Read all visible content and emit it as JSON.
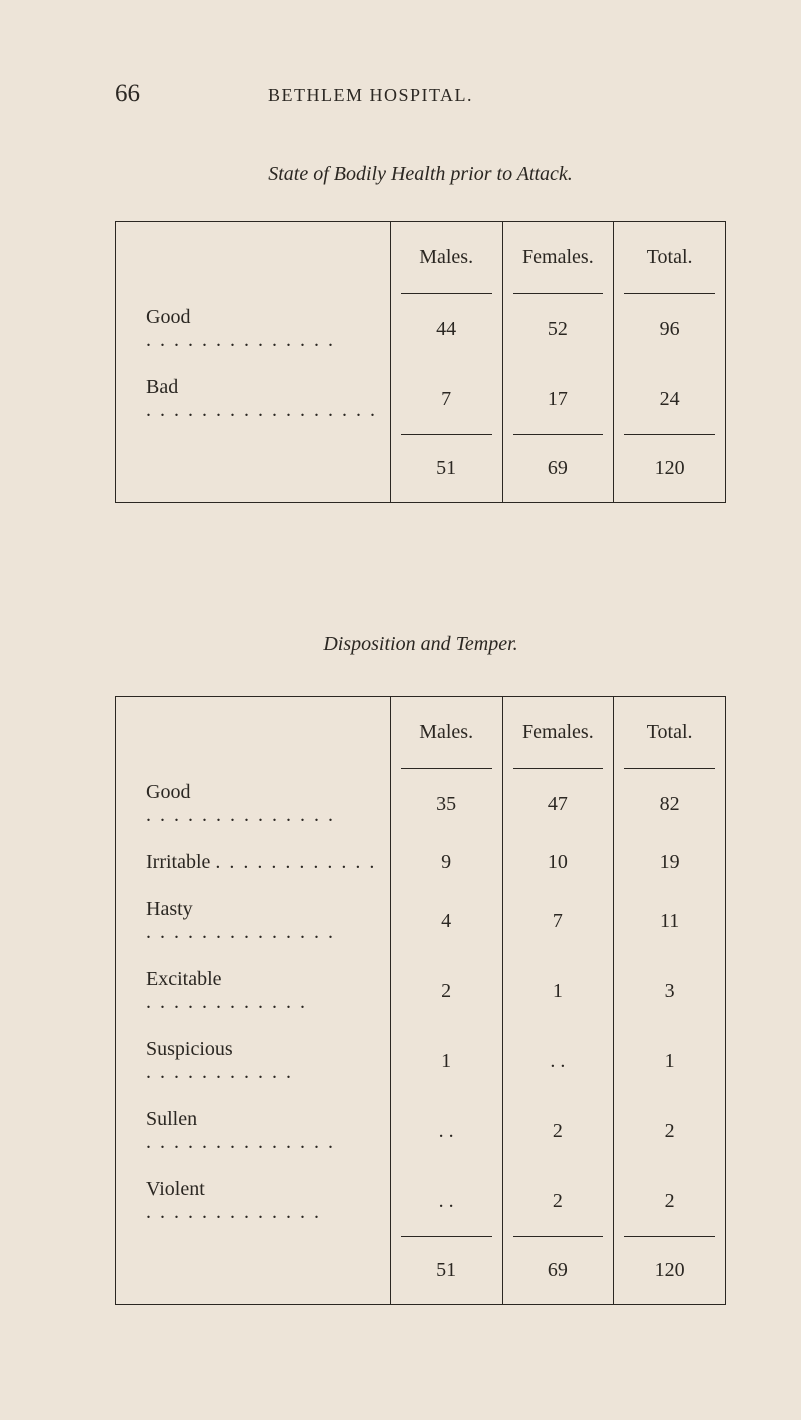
{
  "page_number": "66",
  "running_header": "BETHLEM  HOSPITAL.",
  "table1": {
    "title": "State of Bodily Health prior to Attack.",
    "headers": {
      "males": "Males.",
      "females": "Females.",
      "total": "Total."
    },
    "rows": [
      {
        "label": "Good",
        "dots": ". . . . . . . . . . . . . .",
        "males": "44",
        "females": "52",
        "total": "96"
      },
      {
        "label": "Bad",
        "dots": ". . . . . . . . . . . . . . . . .",
        "males": "7",
        "females": "17",
        "total": "24"
      }
    ],
    "totals": {
      "males": "51",
      "females": "69",
      "total": "120"
    }
  },
  "table2": {
    "title": "Disposition and Temper.",
    "headers": {
      "males": "Males.",
      "females": "Females.",
      "total": "Total."
    },
    "rows": [
      {
        "label": "Good",
        "dots": ". . . . . . . . . . . . . .",
        "males": "35",
        "females": "47",
        "total": "82"
      },
      {
        "label": "Irritable",
        "dots": ". . . . . . . . . . . .",
        "males": "9",
        "females": "10",
        "total": "19"
      },
      {
        "label": "Hasty",
        "dots": ". . . . . . . . . . . . . .",
        "males": "4",
        "females": "7",
        "total": "11"
      },
      {
        "label": "Excitable",
        "dots": ". . . . . . . . . . . .",
        "males": "2",
        "females": "1",
        "total": "3"
      },
      {
        "label": "Suspicious",
        "dots": ". . . . . . . . . . .",
        "males": "1",
        "females": ". .",
        "total": "1"
      },
      {
        "label": "Sullen",
        "dots": ". . . . . . . . . . . . . .",
        "males": ". .",
        "females": "2",
        "total": "2"
      },
      {
        "label": "Violent",
        "dots": ". . . . . . . . . . . . .",
        "males": ". .",
        "females": "2",
        "total": "2"
      }
    ],
    "totals": {
      "males": "51",
      "females": "69",
      "total": "120"
    }
  },
  "colors": {
    "background": "#ede4d8",
    "text": "#2b2722",
    "rule": "#2b2722"
  },
  "typography": {
    "body_fontsize": 20,
    "pagenum_fontsize": 25,
    "header_fontsize": 18,
    "title_fontsize": 20
  }
}
